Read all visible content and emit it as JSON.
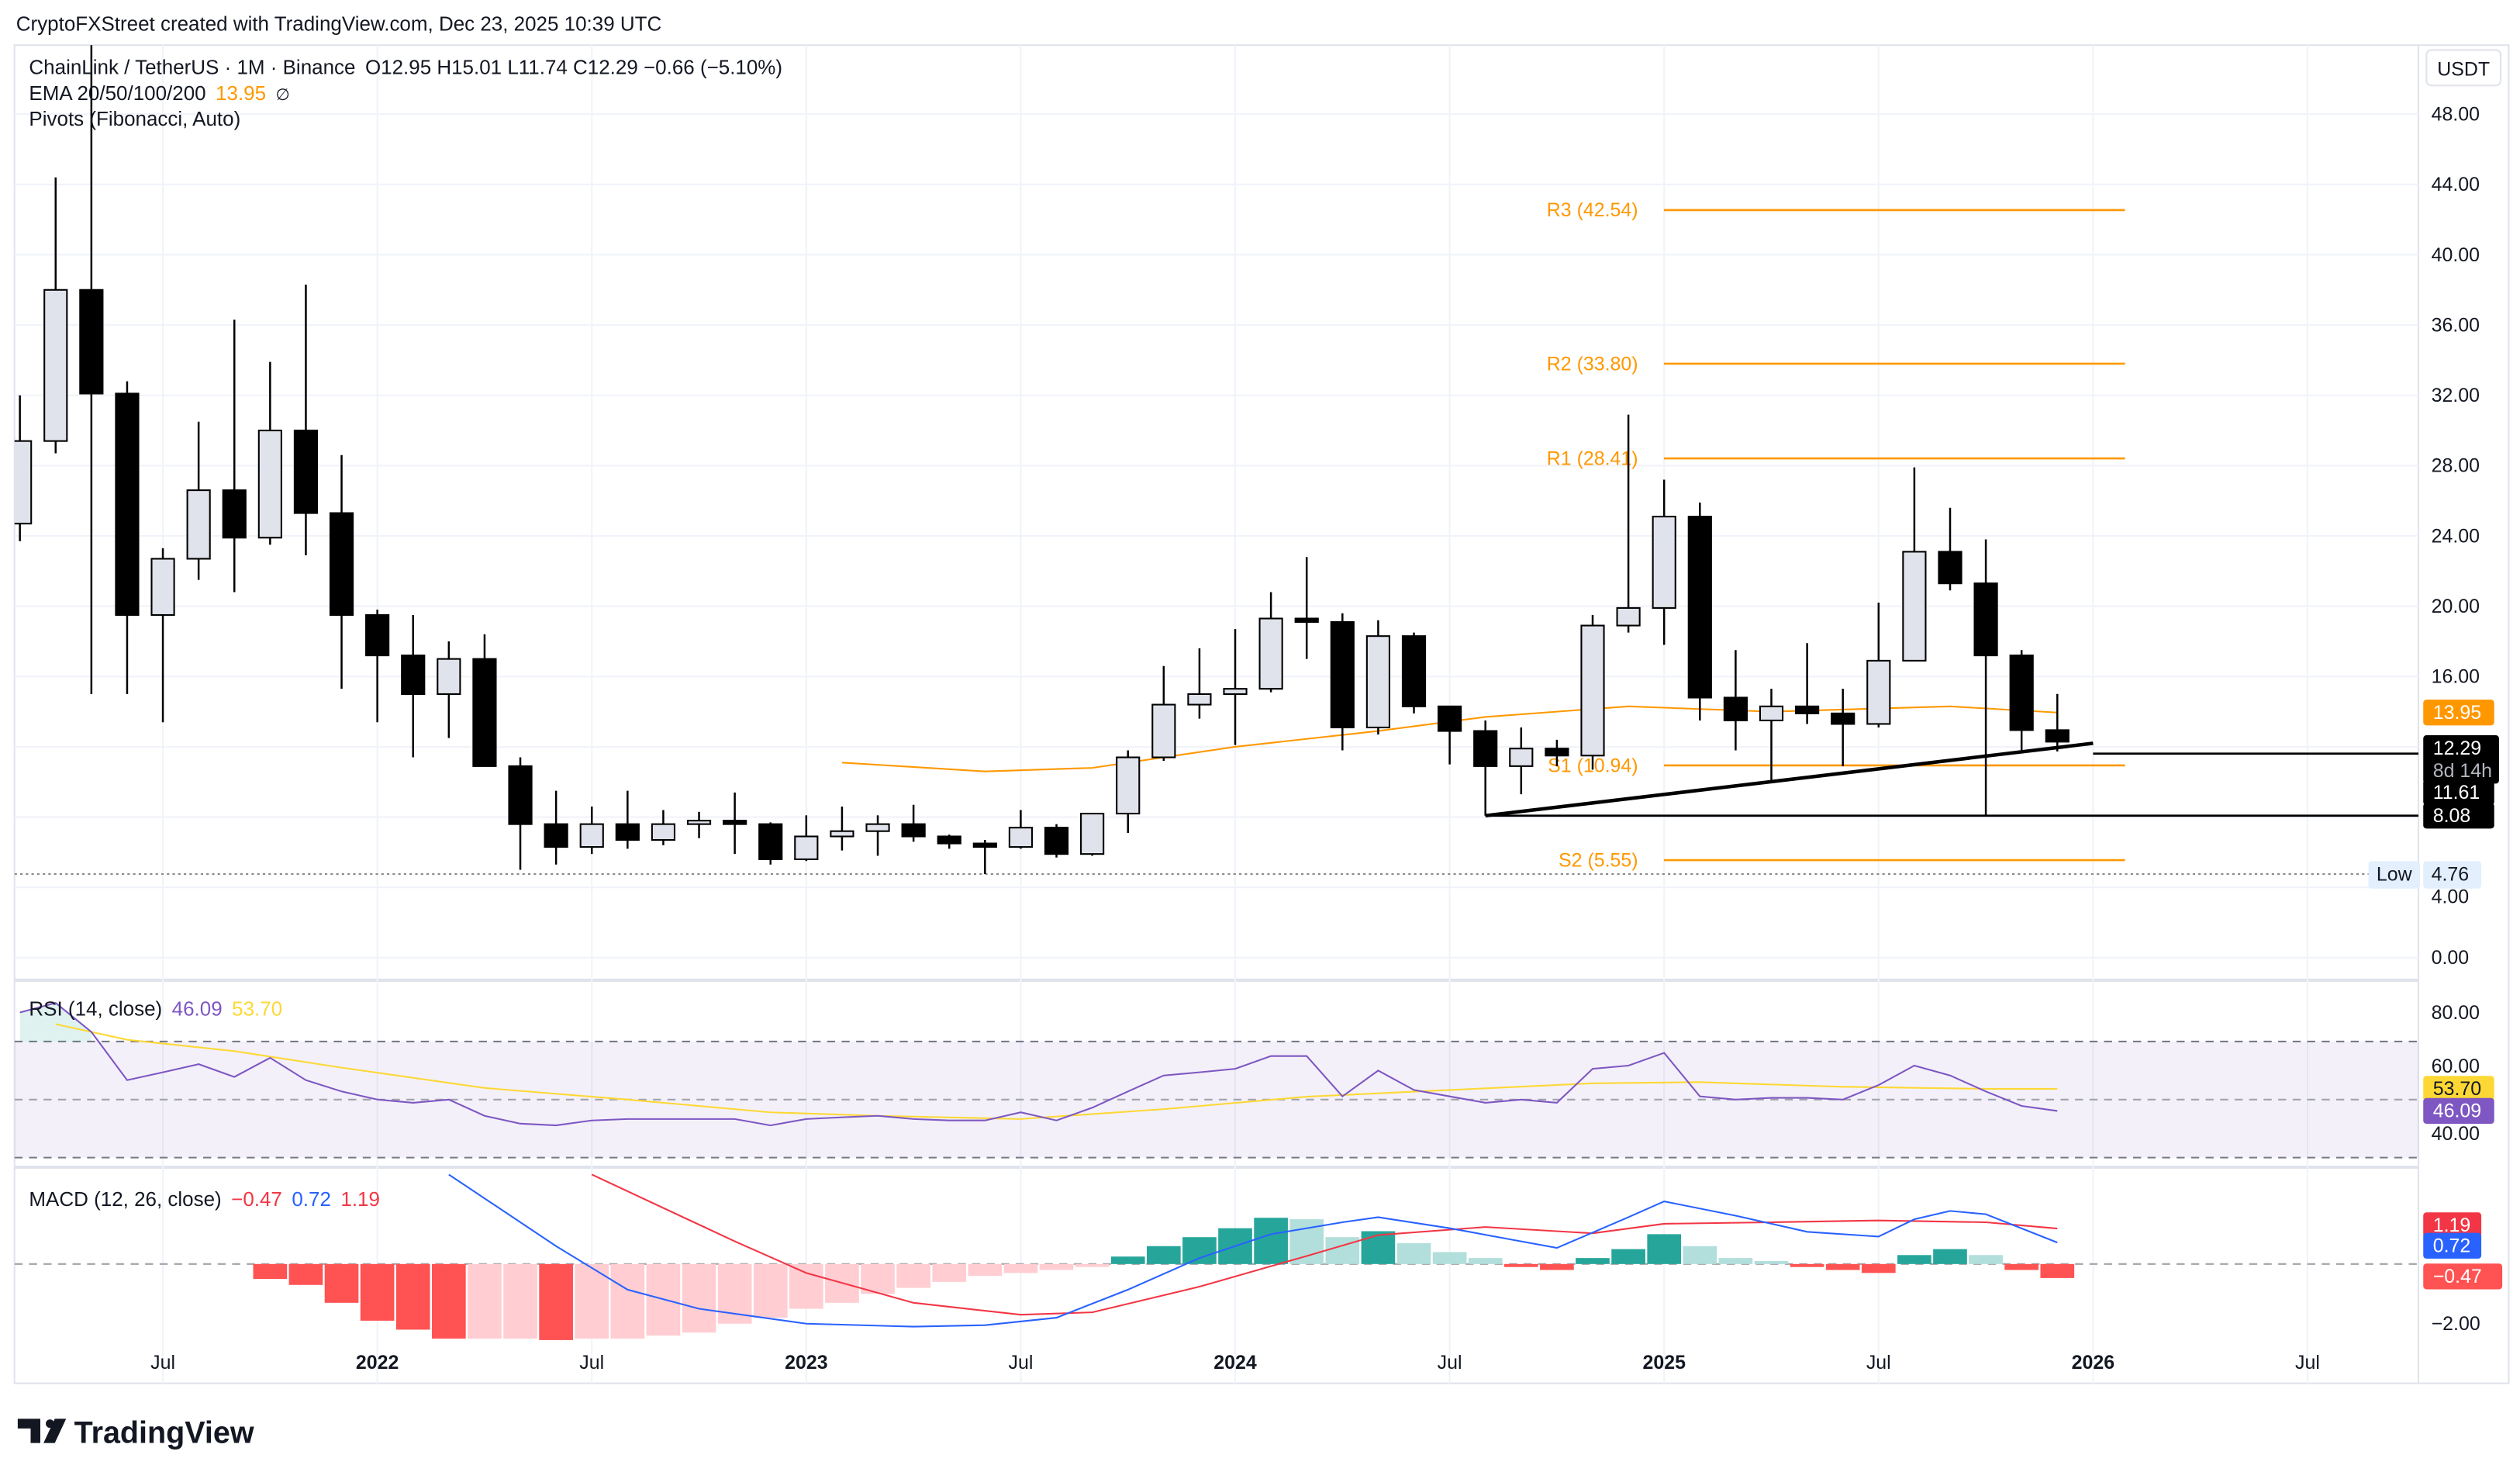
{
  "header": {
    "credit": "CryptoFXStreet created with TradingView.com, Dec 23, 2025 10:39 UTC"
  },
  "legend": {
    "symbol": "ChainLink / TetherUS · 1M · Binance",
    "ohlc": "O12.95  H15.01  L11.74  C12.29  −0.66 (−5.10%)",
    "ema_label": "EMA 20/50/100/200",
    "ema_value": "13.95",
    "ema_na": "∅",
    "pivots_label": "Pivots (Fibonacci, Auto)"
  },
  "currency": "USDT",
  "colors": {
    "up_body": "#e0e3eb",
    "down_body": "#000000",
    "ema": "#ff9800",
    "pivot": "#ff9800",
    "rsi": "#7e57c2",
    "rsi_ma": "#fdd835",
    "macd": "#2962ff",
    "signal": "#f23645",
    "hist_pos_grow": "#26a69a",
    "hist_pos_fall": "#b2dfdb",
    "hist_neg_grow": "#ff5252",
    "hist_neg_fall": "#ffcdd2"
  },
  "chart_data": [
    {
      "type": "candlestick",
      "ylim": [
        0,
        50
      ],
      "yticks": [
        "48.00",
        "44.00",
        "40.00",
        "36.00",
        "32.00",
        "28.00",
        "24.00",
        "20.00",
        "16.00",
        "4.00",
        "0.00"
      ],
      "ytick_values": [
        48,
        44,
        40,
        36,
        32,
        28,
        24,
        20,
        16,
        4,
        0
      ],
      "xticks": [
        "Jul",
        "2022",
        "Jul",
        "2023",
        "Jul",
        "2024",
        "Jul",
        "2025",
        "Jul",
        "2026",
        "Jul"
      ],
      "xtick_dates": [
        "2021-07",
        "2022-01",
        "2022-07",
        "2023-01",
        "2023-07",
        "2024-01",
        "2024-07",
        "2025-01",
        "2025-07",
        "2026-01",
        "2026-07"
      ],
      "candles": [
        [
          "2021-03",
          24.7,
          32,
          23.7,
          29.4
        ],
        [
          "2021-04",
          29.4,
          44.4,
          28.7,
          38
        ],
        [
          "2021-05",
          38,
          52.9,
          15,
          32.1
        ],
        [
          "2021-06",
          32.1,
          32.8,
          15,
          19.5
        ],
        [
          "2021-07",
          19.5,
          23.3,
          13.4,
          22.7
        ],
        [
          "2021-08",
          22.7,
          30.5,
          21.5,
          26.6
        ],
        [
          "2021-09",
          26.6,
          36.3,
          20.8,
          23.9
        ],
        [
          "2021-10",
          23.9,
          33.9,
          23.5,
          30
        ],
        [
          "2021-11",
          30,
          38.3,
          22.9,
          25.3
        ],
        [
          "2021-12",
          25.3,
          28.6,
          15.3,
          19.5
        ],
        [
          "2022-01",
          19.5,
          19.8,
          13.4,
          17.2
        ],
        [
          "2022-02",
          17.2,
          19.5,
          11.4,
          15
        ],
        [
          "2022-03",
          15,
          18,
          12.5,
          17
        ],
        [
          "2022-04",
          17,
          18.4,
          10.9,
          10.9
        ],
        [
          "2022-05",
          10.9,
          11.4,
          5,
          7.6
        ],
        [
          "2022-06",
          7.6,
          9.5,
          5.3,
          6.3
        ],
        [
          "2022-07",
          6.3,
          8.6,
          5.9,
          7.6
        ],
        [
          "2022-08",
          7.6,
          9.5,
          6.2,
          6.7
        ],
        [
          "2022-09",
          6.7,
          8.4,
          6.4,
          7.6
        ],
        [
          "2022-10",
          7.6,
          8.3,
          6.8,
          7.8
        ],
        [
          "2022-11",
          7.8,
          9.4,
          5.9,
          7.6
        ],
        [
          "2022-12",
          7.6,
          7.7,
          5.3,
          5.6
        ],
        [
          "2023-01",
          5.6,
          8.1,
          5.5,
          6.9
        ],
        [
          "2023-02",
          6.9,
          8.6,
          6.1,
          7.2
        ],
        [
          "2023-03",
          7.2,
          8.1,
          5.8,
          7.6
        ],
        [
          "2023-04",
          7.6,
          8.7,
          6.6,
          6.9
        ],
        [
          "2023-05",
          6.9,
          7.0,
          6.2,
          6.5
        ],
        [
          "2023-06",
          6.5,
          6.7,
          4.76,
          6.3
        ],
        [
          "2023-07",
          6.3,
          8.4,
          6.2,
          7.4
        ],
        [
          "2023-08",
          7.4,
          7.6,
          5.7,
          5.9
        ],
        [
          "2023-09",
          5.9,
          8.2,
          5.8,
          8.2
        ],
        [
          "2023-10",
          8.2,
          11.8,
          7.1,
          11.4
        ],
        [
          "2023-11",
          11.4,
          16.6,
          11.2,
          14.4
        ],
        [
          "2023-12",
          14.4,
          17.6,
          13.6,
          15
        ],
        [
          "2024-01",
          15,
          18.7,
          12.1,
          15.3
        ],
        [
          "2024-02",
          15.3,
          20.8,
          15.1,
          19.3
        ],
        [
          "2024-03",
          19.3,
          22.8,
          17.0,
          19.1
        ],
        [
          "2024-04",
          19.1,
          19.6,
          11.8,
          13.1
        ],
        [
          "2024-05",
          13.1,
          19.2,
          12.7,
          18.3
        ],
        [
          "2024-06",
          18.3,
          18.5,
          13.9,
          14.3
        ],
        [
          "2024-07",
          14.3,
          14.3,
          11,
          12.9
        ],
        [
          "2024-08",
          12.9,
          13.5,
          8.08,
          10.9
        ],
        [
          "2024-09",
          10.9,
          13.1,
          9.3,
          11.9
        ],
        [
          "2024-10",
          11.9,
          12.4,
          10.9,
          11.5
        ],
        [
          "2024-11",
          11.5,
          19.5,
          10.7,
          18.9
        ],
        [
          "2024-12",
          18.9,
          30.9,
          18.5,
          19.9
        ],
        [
          "2025-01",
          19.9,
          27.2,
          17.8,
          25.1
        ],
        [
          "2025-02",
          25.1,
          25.9,
          13.5,
          14.8
        ],
        [
          "2025-03",
          14.8,
          17.5,
          11.8,
          13.5
        ],
        [
          "2025-04",
          13.5,
          15.3,
          10,
          14.3
        ],
        [
          "2025-05",
          14.3,
          17.9,
          13.3,
          13.9
        ],
        [
          "2025-06",
          13.9,
          15.3,
          10.9,
          13.3
        ],
        [
          "2025-07",
          13.3,
          20.2,
          13.1,
          16.9
        ],
        [
          "2025-08",
          16.9,
          27.9,
          16.9,
          23.1
        ],
        [
          "2025-09",
          23.1,
          25.6,
          20.9,
          21.3
        ],
        [
          "2025-10",
          21.3,
          23.8,
          8.08,
          17.2
        ],
        [
          "2025-11",
          17.2,
          17.5,
          11.8,
          12.95
        ],
        [
          "2025-12",
          12.95,
          15.01,
          11.74,
          12.29
        ]
      ],
      "ema": [
        [
          "2023-02",
          11.1
        ],
        [
          "2023-06",
          10.6
        ],
        [
          "2023-09",
          10.8
        ],
        [
          "2024-01",
          12.0
        ],
        [
          "2024-05",
          12.9
        ],
        [
          "2024-08",
          13.7
        ],
        [
          "2024-12",
          14.3
        ],
        [
          "2025-04",
          14.0
        ],
        [
          "2025-09",
          14.3
        ],
        [
          "2025-12",
          13.95
        ]
      ],
      "pivots": [
        {
          "label": "R3 (42.54)",
          "value": 42.54
        },
        {
          "label": "R2 (33.80)",
          "value": 33.8
        },
        {
          "label": "R1 (28.41)",
          "value": 28.41
        },
        {
          "label": "S1 (10.94)",
          "value": 10.94
        },
        {
          "label": "S2 (5.55)",
          "value": 5.55
        }
      ],
      "trendline": [
        [
          "2024-08",
          8.08
        ],
        [
          "2026-01",
          12.2
        ]
      ],
      "horizontal_lines": [
        {
          "from": "2024-08",
          "value": 8.08
        },
        {
          "from": "2026-01",
          "value": 11.61
        }
      ],
      "low_marker": {
        "label": "Low",
        "value": "4.76",
        "price": 4.76
      },
      "price_labels": [
        {
          "text": "13.95",
          "value": 13.95,
          "style": "ema"
        },
        {
          "text": "12.29",
          "sub": "8d 14h",
          "value": 12.29,
          "style": "last"
        },
        {
          "text": "11.61",
          "value": 11.61,
          "style": "line"
        },
        {
          "text": "8.08",
          "value": 8.08,
          "style": "line"
        }
      ]
    },
    {
      "type": "line",
      "title": "RSI (14, close)",
      "value": "46.09",
      "ma_value": "53.70",
      "ylim": [
        30,
        85
      ],
      "bands": {
        "upper": 70,
        "middle": 50,
        "lower": 30
      },
      "yticks": [
        "80.00",
        "60.00",
        "40.00"
      ],
      "ytick_values": [
        80,
        60,
        40
      ],
      "start": "2021-03",
      "rsi": [
        80,
        83.3,
        73.3,
        56.7,
        59.4,
        62.2,
        57.8,
        64.4,
        56.7,
        52.8,
        50,
        48.9,
        50,
        44.4,
        41.7,
        41.1,
        42.8,
        43.3,
        43.3,
        43.3,
        43.3,
        41.1,
        43.3,
        43.9,
        44.4,
        43.3,
        42.8,
        42.8,
        45.6,
        42.8,
        47.2,
        52.8,
        58.3,
        59.4,
        60.6,
        65,
        65,
        51.1,
        60,
        53.3,
        51.1,
        48.9,
        50,
        48.9,
        60.6,
        61.7,
        66.1,
        51.1,
        50,
        50.6,
        50.6,
        50,
        55,
        61.7,
        58.3,
        52.8,
        47.8,
        46.09
      ],
      "rsi_ma": [
        [
          "2021-04",
          76
        ],
        [
          "2021-06",
          70.6
        ],
        [
          "2021-09",
          66.7
        ],
        [
          "2021-12",
          61
        ],
        [
          "2022-04",
          54
        ],
        [
          "2022-08",
          50
        ],
        [
          "2022-12",
          45.6
        ],
        [
          "2023-03",
          44.4
        ],
        [
          "2023-07",
          43.3
        ],
        [
          "2023-11",
          46.7
        ],
        [
          "2024-03",
          51
        ],
        [
          "2024-07",
          53.3
        ],
        [
          "2024-11",
          55.6
        ],
        [
          "2025-02",
          56
        ],
        [
          "2025-06",
          54.4
        ],
        [
          "2025-10",
          53.7
        ],
        [
          "2025-12",
          53.7
        ]
      ],
      "price_labels": [
        {
          "text": "53.70",
          "value": 53.7,
          "style": "ma"
        },
        {
          "text": "46.09",
          "value": 46.09,
          "style": "rsi"
        }
      ]
    },
    {
      "type": "bar+line",
      "title": "MACD (12, 26, close)",
      "hist_value": "−0.47",
      "macd_value": "0.72",
      "signal_value": "1.19",
      "ylim": [
        -2.6,
        3.1
      ],
      "yticks": [
        "−2.00"
      ],
      "ytick_values": [
        -2
      ],
      "hist_start": "2021-10",
      "histogram": [
        -0.5,
        -0.7,
        -1.3,
        -1.9,
        -2.2,
        -2.5,
        -2.5,
        -2.5,
        -2.55,
        -2.5,
        -2.5,
        -2.4,
        -2.3,
        -2.0,
        -1.8,
        -1.5,
        -1.3,
        -1.0,
        -0.8,
        -0.6,
        -0.4,
        -0.3,
        -0.2,
        -0.1,
        0.25,
        0.6,
        0.9,
        1.2,
        1.55,
        1.5,
        0.9,
        1.1,
        0.7,
        0.4,
        0.2,
        -0.1,
        -0.2,
        0.2,
        0.5,
        1.0,
        0.6,
        0.2,
        0.1,
        -0.1,
        -0.2,
        -0.3,
        0.3,
        0.5,
        0.3,
        -0.2,
        -0.47
      ],
      "macd": [
        [
          "2022-03",
          3.0
        ],
        [
          "2022-06",
          0.6
        ],
        [
          "2022-08",
          -0.86
        ],
        [
          "2022-10",
          -1.5
        ],
        [
          "2023-01",
          -2.0
        ],
        [
          "2023-04",
          -2.1
        ],
        [
          "2023-06",
          -2.05
        ],
        [
          "2023-08",
          -1.8
        ],
        [
          "2023-10",
          -0.86
        ],
        [
          "2023-12",
          0.2
        ],
        [
          "2024-02",
          1.0
        ],
        [
          "2024-04",
          1.4
        ],
        [
          "2024-05",
          1.57
        ],
        [
          "2024-07",
          1.2
        ],
        [
          "2024-09",
          0.76
        ],
        [
          "2024-10",
          0.54
        ],
        [
          "2024-12",
          1.57
        ],
        [
          "2025-01",
          2.1
        ],
        [
          "2025-03",
          1.62
        ],
        [
          "2025-05",
          1.08
        ],
        [
          "2025-07",
          0.92
        ],
        [
          "2025-08",
          1.5
        ],
        [
          "2025-09",
          1.78
        ],
        [
          "2025-10",
          1.67
        ],
        [
          "2025-12",
          0.72
        ]
      ],
      "signal": [
        [
          "2022-07",
          3.0
        ],
        [
          "2022-11",
          0.76
        ],
        [
          "2023-01",
          -0.3
        ],
        [
          "2023-04",
          -1.3
        ],
        [
          "2023-07",
          -1.7
        ],
        [
          "2023-09",
          -1.62
        ],
        [
          "2023-12",
          -0.76
        ],
        [
          "2024-03",
          0.27
        ],
        [
          "2024-05",
          0.97
        ],
        [
          "2024-08",
          1.24
        ],
        [
          "2024-11",
          1.03
        ],
        [
          "2025-01",
          1.35
        ],
        [
          "2025-04",
          1.4
        ],
        [
          "2025-07",
          1.46
        ],
        [
          "2025-10",
          1.4
        ],
        [
          "2025-12",
          1.19
        ]
      ],
      "price_labels": [
        {
          "text": "1.19",
          "value": 1.19,
          "style": "signal"
        },
        {
          "text": "0.72",
          "value": 0.72,
          "style": "macd"
        },
        {
          "text": "−0.47",
          "value": -0.47,
          "style": "hist"
        }
      ]
    }
  ],
  "footer": {
    "logo": "TradingView"
  }
}
